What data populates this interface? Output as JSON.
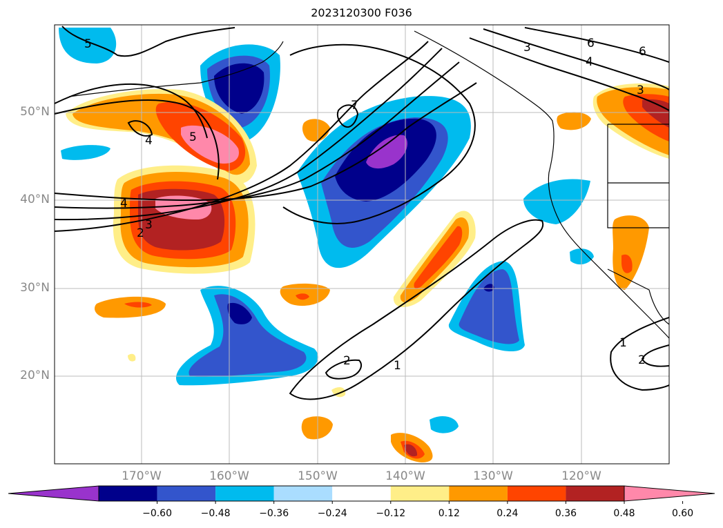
{
  "title": "2023120300 F036",
  "map": {
    "lat_labels": [
      "50°N",
      "40°N",
      "30°N",
      "20°N"
    ],
    "lon_labels": [
      "170°W",
      "160°W",
      "150°W",
      "140°W",
      "130°W",
      "120°W"
    ],
    "contour_labels": [
      "5",
      "4",
      "4",
      "3",
      "2",
      "5",
      "7",
      "3",
      "4",
      "6",
      "6",
      "3",
      "2",
      "1",
      "1",
      "2"
    ]
  },
  "colorbar": {
    "ticks": [
      "−0.60",
      "−0.48",
      "−0.36",
      "−0.24",
      "−0.12",
      "0.12",
      "0.24",
      "0.36",
      "0.48",
      "0.60"
    ],
    "colors": [
      "#9933cc",
      "#00008b",
      "#3355cc",
      "#00bbee",
      "#aaddff",
      "#ffffff",
      "#ffee88",
      "#ff9900",
      "#ff4400",
      "#b22222",
      "#ff88aa"
    ]
  }
}
